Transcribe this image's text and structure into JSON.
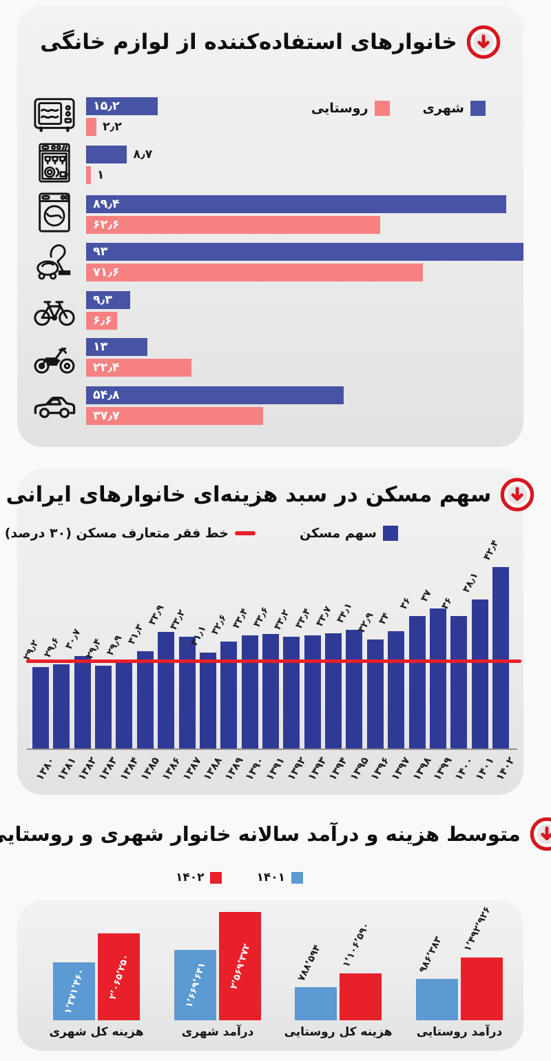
{
  "page": {
    "badge_color": "#d7161f",
    "card_titles_color": "#0d0d0d"
  },
  "chart_data": [
    {
      "id": "appliance-usage",
      "type": "bar",
      "orientation": "horizontal",
      "title": "خانوارهای استفاده‌کننده از لوازم خانگی",
      "xlim": [
        0,
        93
      ],
      "grid": false,
      "legend_position": "top-right",
      "legend": [
        {
          "label": "شهری",
          "color": "#4753a4"
        },
        {
          "label": "روستایی",
          "color": "#f58181"
        }
      ],
      "colors": {
        "urban": "#4753a4",
        "rural": "#f58181"
      },
      "rows": [
        {
          "icon": "microwave-icon",
          "urban": 15.2,
          "urban_label": "۱۵٫۲",
          "urban_label_inside": true,
          "rural": 2.2,
          "rural_label": "۲٫۲",
          "rural_label_inside": false
        },
        {
          "icon": "dishwasher-icon",
          "urban": 8.7,
          "urban_label": "۸٫۷",
          "urban_label_inside": false,
          "rural": 1,
          "rural_label": "۱",
          "rural_label_inside": false
        },
        {
          "icon": "washing-machine-icon",
          "urban": 89.4,
          "urban_label": "۸۹٫۴",
          "urban_label_inside": true,
          "rural": 62.6,
          "rural_label": "۶۲٫۶",
          "rural_label_inside": true
        },
        {
          "icon": "vacuum-cleaner-icon",
          "urban": 93,
          "urban_label": "۹۳",
          "urban_label_inside": true,
          "rural": 71.6,
          "rural_label": "۷۱٫۶",
          "rural_label_inside": true
        },
        {
          "icon": "bicycle-icon",
          "urban": 9.3,
          "urban_label": "۹٫۳",
          "urban_label_inside": true,
          "rural": 6.6,
          "rural_label": "۶٫۶",
          "rural_label_inside": true
        },
        {
          "icon": "motorcycle-icon",
          "urban": 13,
          "urban_label": "۱۳",
          "urban_label_inside": true,
          "rural": 22.4,
          "rural_label": "۲۲٫۴",
          "rural_label_inside": true
        },
        {
          "icon": "car-icon",
          "urban": 54.8,
          "urban_label": "۵۴٫۸",
          "urban_label_inside": true,
          "rural": 37.7,
          "rural_label": "۳۷٫۷",
          "rural_label_inside": true
        }
      ]
    },
    {
      "id": "housing-share",
      "type": "bar",
      "orientation": "vertical",
      "title": "سهم مسکن در سبد هزینه‌ای خانوارهای ایرانی",
      "bar_legend_label": "سهم مسکن",
      "line_legend_label": "خط فقر متعارف مسکن (۳۰ درصد)",
      "bar_color": "#2f3a97",
      "line_color": "#e8202a",
      "poverty_line_value": 30,
      "ylim": [
        18.5,
        44
      ],
      "grid": false,
      "categories": [
        "۱۳۸۰",
        "۱۳۸۱",
        "۱۳۸۲",
        "۱۳۸۳",
        "۱۳۸۴",
        "۱۳۸۵",
        "۱۳۸۶",
        "۱۳۸۷",
        "۱۳۸۸",
        "۱۳۸۹",
        "۱۳۹۰",
        "۱۳۹۱",
        "۱۳۹۲",
        "۱۳۹۳",
        "۱۳۹۴",
        "۱۳۹۵",
        "۱۳۹۶",
        "۱۳۹۷",
        "۱۳۹۸",
        "۱۳۹۹",
        "۱۴۰۰",
        "۱۴۰۱",
        "۱۴۰۲"
      ],
      "values": [
        29.2,
        29.6,
        30.7,
        29.4,
        29.9,
        31.3,
        33.9,
        33.2,
        31.1,
        32.6,
        33.4,
        33.6,
        33.2,
        33.4,
        33.7,
        34.1,
        32.9,
        34,
        36,
        37,
        36,
        38.1,
        42.4
      ],
      "value_labels": [
        "۲۹٫۲",
        "۲۹٫۶",
        "۳۰٫۷",
        "۲۹٫۴",
        "۲۹٫۹",
        "۳۱٫۳",
        "۳۳٫۹",
        "۳۳٫۲",
        "۳۱٫۱",
        "۳۲٫۶",
        "۳۳٫۴",
        "۳۳٫۶",
        "۳۳٫۲",
        "۳۳٫۴",
        "۳۳٫۷",
        "۳۴٫۱",
        "۳۲٫۹",
        "۳۴",
        "۳۶",
        "۳۷",
        "۳۶",
        "۳۸٫۱",
        "۴۲٫۴"
      ]
    },
    {
      "id": "household-income-expense",
      "type": "bar",
      "orientation": "vertical-grouped",
      "title": "متوسط هزینه و درآمد سالانه خانوار شهری و روستایی",
      "legend": [
        {
          "label": "۱۴۰۱",
          "color": "#5b9ad2"
        },
        {
          "label": "۱۴۰۲",
          "color": "#e8202a"
        }
      ],
      "series_colors": {
        "y1401": "#5b9ad2",
        "y1402": "#e8202a"
      },
      "ylim": [
        0,
        2569372
      ],
      "grid": false,
      "groups": [
        {
          "label": "هزینه کل شهری",
          "y1401": 1371460,
          "y1401_label": "۱٬۳۷۱٬۴۶۰",
          "y1402": 2065250,
          "y1402_label": "۲٬۰۶۵٬۲۵۰",
          "labels_inside": true
        },
        {
          "label": "درآمد شهری",
          "y1401": 1669641,
          "y1401_label": "۱٬۶۶۹٬۶۴۱",
          "y1402": 2569372,
          "y1402_label": "۲٬۵۶۹٬۳۷۲",
          "labels_inside": true
        },
        {
          "label": "هزینه کل روستایی",
          "y1401": 788594,
          "y1401_label": "۷۸۸٬۵۹۴",
          "y1402": 1106590,
          "y1402_label": "۱٬۱۰۶٬۵۹۰",
          "labels_inside": false
        },
        {
          "label": "درآمد روستایی",
          "y1401": 986383,
          "y1401_label": "۹۸۶٬۳۸۳",
          "y1402": 1492926,
          "y1402_label": "۱٬۴۹۲٬۹۲۶",
          "labels_inside": false
        }
      ]
    }
  ]
}
